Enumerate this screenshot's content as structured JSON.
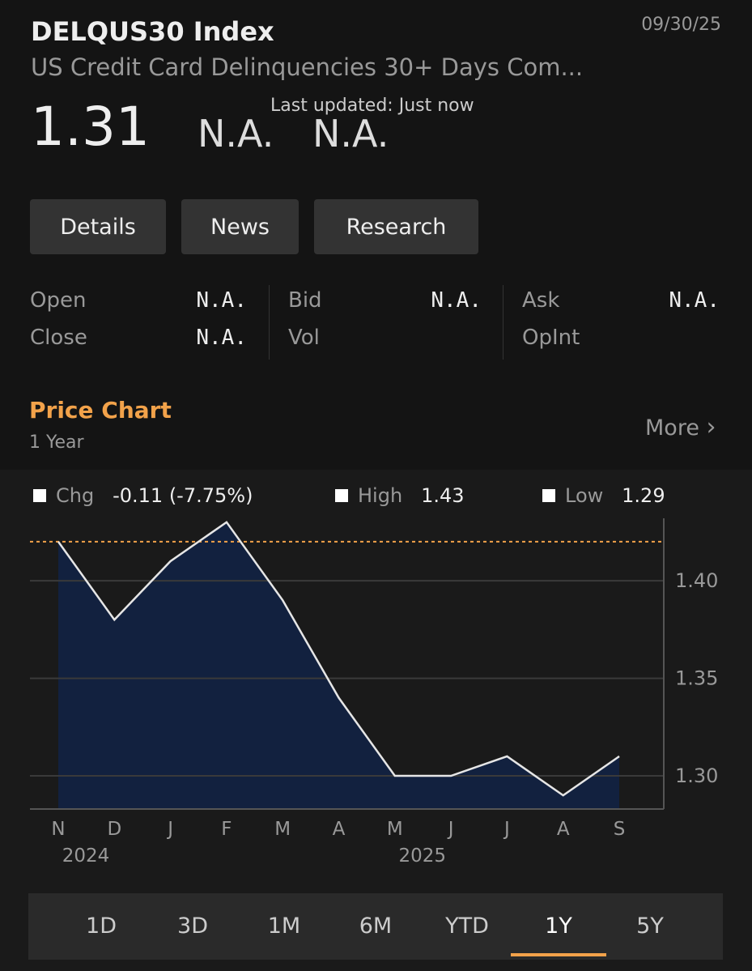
{
  "header": {
    "ticker": "DELQUS30 Index",
    "date": "09/30/25",
    "description": "US Credit Card Delinquencies 30+ Days Com...",
    "price": "1.31",
    "change": "N.A.",
    "change_pct": "N.A.",
    "updated": "Last updated: Just now"
  },
  "buttons": [
    "Details",
    "News",
    "Research"
  ],
  "quote": [
    [
      {
        "label": "Open",
        "value": "N.A."
      },
      {
        "label": "Close",
        "value": "N.A."
      }
    ],
    [
      {
        "label": "Bid",
        "value": "N.A."
      },
      {
        "label": "Vol"
      }
    ],
    [
      {
        "label": "Ask",
        "value": "N.A."
      },
      {
        "label": "OpInt"
      }
    ]
  ],
  "section": {
    "title": "Price Chart",
    "subtitle": "1 Year",
    "more": "More"
  },
  "chart_data": {
    "type": "area",
    "stats": [
      {
        "label": "Chg",
        "value": "-0.11 (-7.75%)"
      },
      {
        "label": "High",
        "value": "1.43"
      },
      {
        "label": "Low",
        "value": "1.29"
      }
    ],
    "categories": [
      "N",
      "D",
      "J",
      "F",
      "M",
      "A",
      "M",
      "J",
      "J",
      "A",
      "S"
    ],
    "year_labels": [
      "2024",
      null,
      null,
      null,
      null,
      null,
      "2025",
      null,
      null,
      null,
      null
    ],
    "values": [
      1.42,
      1.38,
      1.41,
      1.43,
      1.39,
      1.34,
      1.3,
      1.3,
      1.31,
      1.29,
      1.31
    ],
    "ref_line": 1.42,
    "color": "#12213f",
    "line_color": "#e6e6e6",
    "ref_color": "#f2a24a",
    "ylim": [
      1.283,
      1.432
    ],
    "yticks": [
      {
        "value": 1.3,
        "label": "1.30"
      },
      1.35,
      {
        "value": 1.4,
        "label": "1.40"
      }
    ],
    "grid": true
  },
  "ranges": {
    "options": [
      "1D",
      "3D",
      "1M",
      "6M",
      "YTD",
      "1Y",
      "5Y"
    ],
    "selected": 5
  }
}
